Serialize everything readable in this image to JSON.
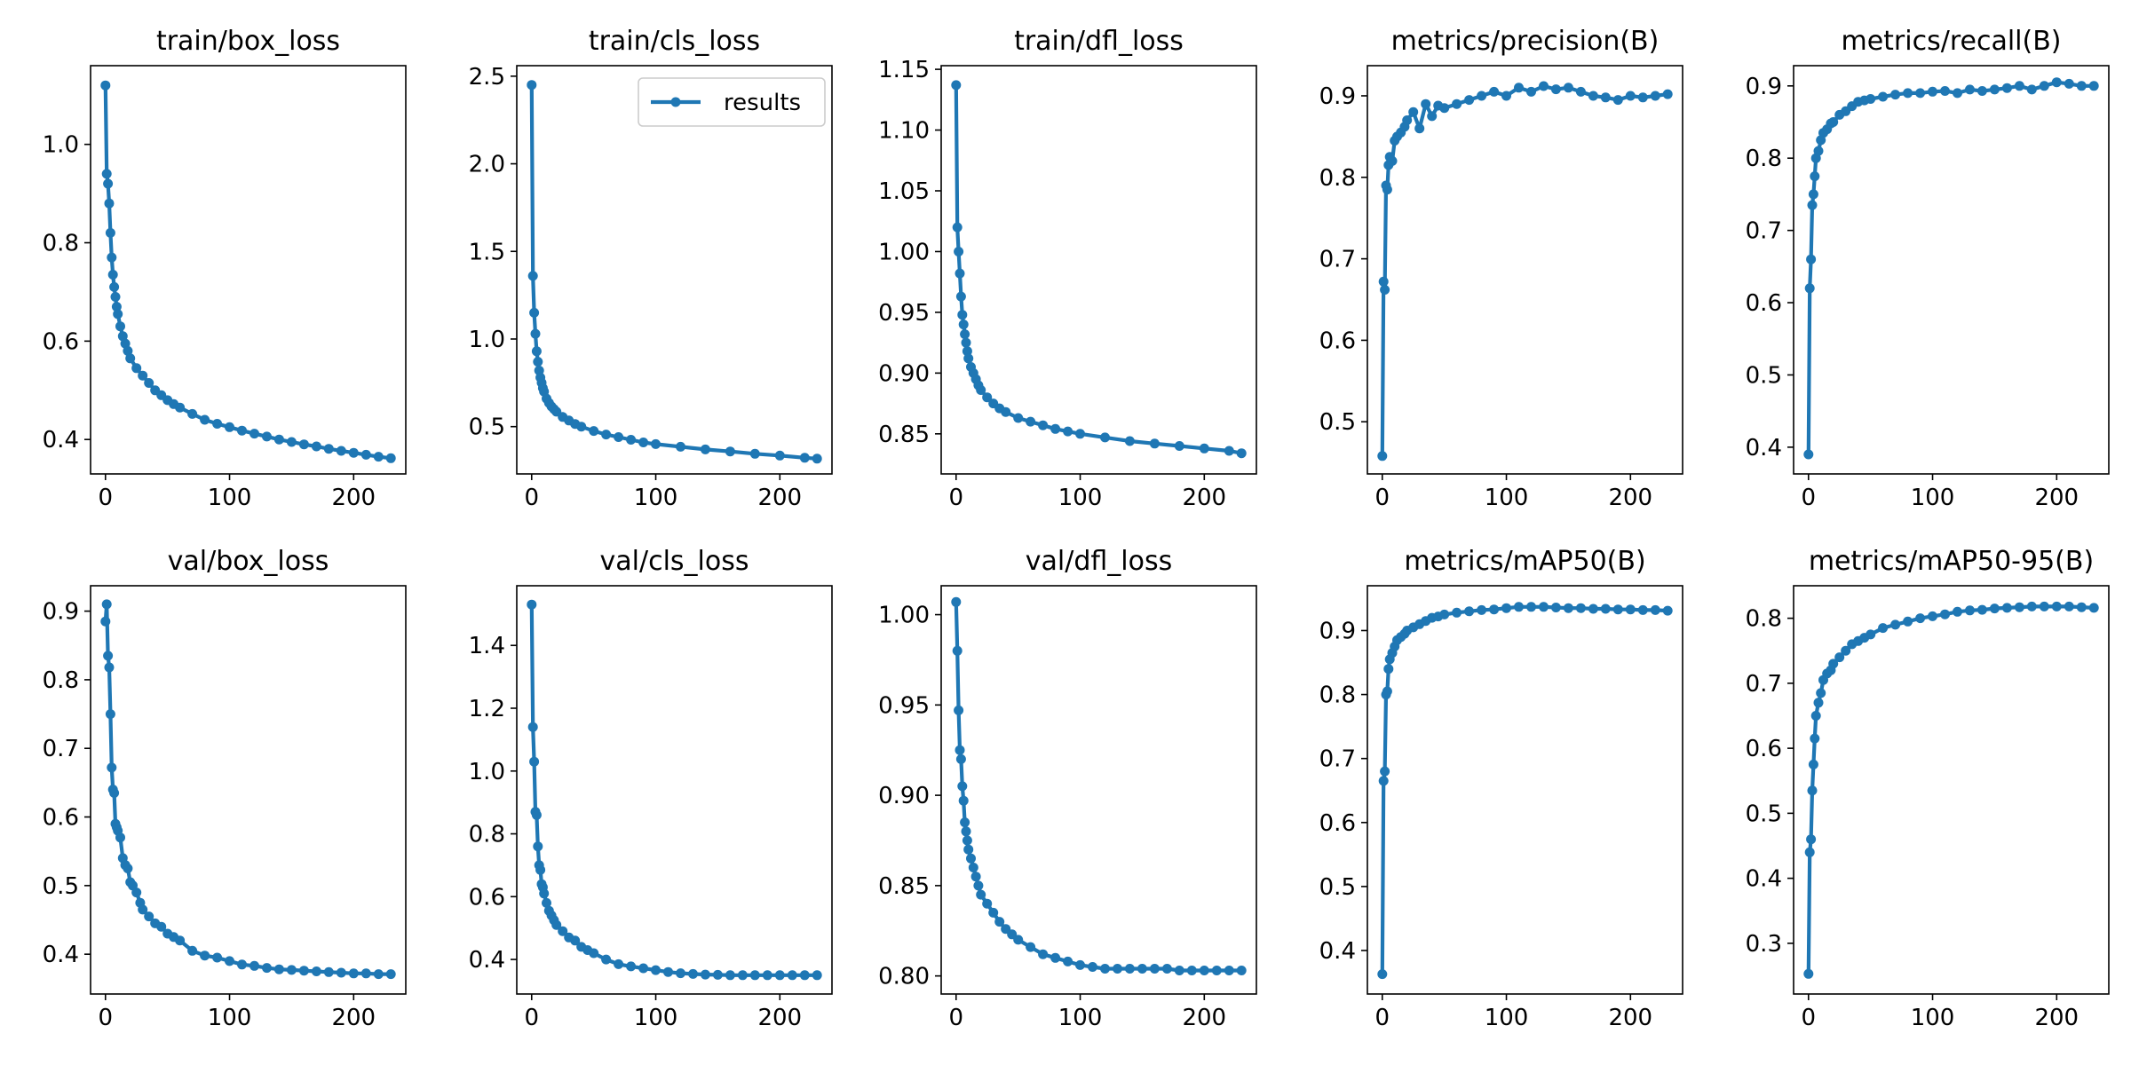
{
  "legend": {
    "label": "results"
  },
  "colors": {
    "series": "#1f77b4",
    "axes": "#000000",
    "background": "#ffffff",
    "legend_border": "#cccccc"
  },
  "chart_data": [
    {
      "type": "line",
      "title": "train/box_loss",
      "xlabel": "",
      "ylabel": "",
      "xlim": [
        -12,
        242
      ],
      "ylim": [
        0.33,
        1.16
      ],
      "xticks": [
        0,
        100,
        200
      ],
      "yticks": [
        0.4,
        0.6,
        0.8,
        1.0
      ],
      "y_decimals": 1,
      "series": [
        {
          "name": "results",
          "x": [
            0,
            1,
            2,
            3,
            4,
            5,
            6,
            7,
            8,
            9,
            10,
            12,
            14,
            16,
            18,
            20,
            25,
            30,
            35,
            40,
            45,
            50,
            55,
            60,
            70,
            80,
            90,
            100,
            110,
            120,
            130,
            140,
            150,
            160,
            170,
            180,
            190,
            200,
            210,
            220,
            230
          ],
          "y": [
            1.12,
            0.94,
            0.92,
            0.88,
            0.82,
            0.77,
            0.735,
            0.71,
            0.69,
            0.67,
            0.655,
            0.63,
            0.61,
            0.595,
            0.58,
            0.565,
            0.545,
            0.53,
            0.515,
            0.5,
            0.49,
            0.48,
            0.472,
            0.465,
            0.452,
            0.44,
            0.432,
            0.425,
            0.418,
            0.412,
            0.406,
            0.4,
            0.395,
            0.39,
            0.386,
            0.381,
            0.377,
            0.373,
            0.369,
            0.365,
            0.362
          ]
        }
      ]
    },
    {
      "type": "line",
      "title": "train/cls_loss",
      "xlabel": "",
      "ylabel": "",
      "xlim": [
        -12,
        242
      ],
      "ylim": [
        0.23,
        2.56
      ],
      "xticks": [
        0,
        100,
        200
      ],
      "yticks": [
        0.5,
        1.0,
        1.5,
        2.0,
        2.5
      ],
      "y_decimals": 1,
      "legend": "top-right",
      "series": [
        {
          "name": "results",
          "x": [
            0,
            1,
            2,
            3,
            4,
            5,
            6,
            7,
            8,
            9,
            10,
            12,
            14,
            16,
            18,
            20,
            25,
            30,
            35,
            40,
            50,
            60,
            70,
            80,
            90,
            100,
            120,
            140,
            160,
            180,
            200,
            220,
            230
          ],
          "y": [
            2.45,
            1.36,
            1.15,
            1.03,
            0.93,
            0.87,
            0.82,
            0.78,
            0.75,
            0.72,
            0.7,
            0.66,
            0.635,
            0.615,
            0.6,
            0.585,
            0.555,
            0.535,
            0.515,
            0.5,
            0.475,
            0.455,
            0.44,
            0.425,
            0.41,
            0.4,
            0.385,
            0.37,
            0.358,
            0.345,
            0.335,
            0.322,
            0.317
          ]
        }
      ]
    },
    {
      "type": "line",
      "title": "train/dfl_loss",
      "xlabel": "",
      "ylabel": "",
      "xlim": [
        -12,
        242
      ],
      "ylim": [
        0.817,
        1.153
      ],
      "xticks": [
        0,
        100,
        200
      ],
      "yticks": [
        0.85,
        0.9,
        0.95,
        1.0,
        1.05,
        1.1,
        1.15
      ],
      "y_decimals": 2,
      "series": [
        {
          "name": "results",
          "x": [
            0,
            1,
            2,
            3,
            4,
            5,
            6,
            7,
            8,
            9,
            10,
            12,
            14,
            16,
            18,
            20,
            25,
            30,
            35,
            40,
            50,
            60,
            70,
            80,
            90,
            100,
            120,
            140,
            160,
            180,
            200,
            220,
            230
          ],
          "y": [
            1.137,
            1.02,
            1.0,
            0.982,
            0.963,
            0.948,
            0.94,
            0.932,
            0.925,
            0.918,
            0.912,
            0.905,
            0.9,
            0.895,
            0.89,
            0.886,
            0.88,
            0.875,
            0.871,
            0.868,
            0.863,
            0.86,
            0.857,
            0.854,
            0.852,
            0.85,
            0.847,
            0.844,
            0.842,
            0.84,
            0.838,
            0.836,
            0.834
          ]
        }
      ]
    },
    {
      "type": "line",
      "title": "metrics/precision(B)",
      "xlabel": "",
      "ylabel": "",
      "xlim": [
        -12,
        242
      ],
      "ylim": [
        0.436,
        0.937
      ],
      "xticks": [
        0,
        100,
        200
      ],
      "yticks": [
        0.5,
        0.6,
        0.7,
        0.8,
        0.9
      ],
      "y_decimals": 1,
      "series": [
        {
          "name": "results",
          "x": [
            0,
            1,
            2,
            3,
            4,
            5,
            6,
            8,
            10,
            12,
            15,
            18,
            20,
            25,
            30,
            35,
            40,
            45,
            50,
            60,
            70,
            80,
            90,
            100,
            110,
            120,
            130,
            140,
            150,
            160,
            170,
            180,
            190,
            200,
            210,
            220,
            230
          ],
          "y": [
            0.458,
            0.672,
            0.662,
            0.79,
            0.785,
            0.815,
            0.825,
            0.82,
            0.845,
            0.85,
            0.855,
            0.862,
            0.87,
            0.88,
            0.86,
            0.89,
            0.875,
            0.888,
            0.885,
            0.89,
            0.895,
            0.9,
            0.905,
            0.9,
            0.91,
            0.905,
            0.912,
            0.908,
            0.91,
            0.905,
            0.9,
            0.898,
            0.895,
            0.9,
            0.898,
            0.9,
            0.902
          ]
        }
      ]
    },
    {
      "type": "line",
      "title": "metrics/recall(B)",
      "xlabel": "",
      "ylabel": "",
      "xlim": [
        -12,
        242
      ],
      "ylim": [
        0.363,
        0.928
      ],
      "xticks": [
        0,
        100,
        200
      ],
      "yticks": [
        0.4,
        0.5,
        0.6,
        0.7,
        0.8,
        0.9
      ],
      "y_decimals": 1,
      "series": [
        {
          "name": "results",
          "x": [
            0,
            1,
            2,
            3,
            4,
            5,
            6,
            8,
            10,
            12,
            15,
            18,
            20,
            25,
            30,
            35,
            40,
            45,
            50,
            60,
            70,
            80,
            90,
            100,
            110,
            120,
            130,
            140,
            150,
            160,
            170,
            180,
            190,
            200,
            210,
            220,
            230
          ],
          "y": [
            0.39,
            0.62,
            0.66,
            0.735,
            0.75,
            0.775,
            0.8,
            0.81,
            0.825,
            0.835,
            0.84,
            0.848,
            0.85,
            0.86,
            0.865,
            0.872,
            0.878,
            0.88,
            0.882,
            0.885,
            0.888,
            0.89,
            0.89,
            0.892,
            0.893,
            0.89,
            0.895,
            0.893,
            0.895,
            0.897,
            0.9,
            0.895,
            0.9,
            0.905,
            0.903,
            0.9,
            0.9
          ]
        }
      ]
    },
    {
      "type": "line",
      "title": "val/box_loss",
      "xlabel": "",
      "ylabel": "",
      "xlim": [
        -12,
        242
      ],
      "ylim": [
        0.342,
        0.937
      ],
      "xticks": [
        0,
        100,
        200
      ],
      "yticks": [
        0.4,
        0.5,
        0.6,
        0.7,
        0.8,
        0.9
      ],
      "y_decimals": 1,
      "series": [
        {
          "name": "results",
          "x": [
            0,
            1,
            2,
            3,
            4,
            5,
            6,
            7,
            8,
            9,
            10,
            12,
            14,
            16,
            18,
            20,
            22,
            25,
            28,
            30,
            35,
            40,
            45,
            50,
            55,
            60,
            70,
            80,
            90,
            100,
            110,
            120,
            130,
            140,
            150,
            160,
            170,
            180,
            190,
            200,
            210,
            220,
            230
          ],
          "y": [
            0.885,
            0.91,
            0.835,
            0.818,
            0.75,
            0.672,
            0.64,
            0.635,
            0.59,
            0.585,
            0.58,
            0.57,
            0.54,
            0.53,
            0.525,
            0.505,
            0.5,
            0.49,
            0.475,
            0.465,
            0.455,
            0.445,
            0.44,
            0.43,
            0.425,
            0.42,
            0.405,
            0.398,
            0.395,
            0.39,
            0.385,
            0.383,
            0.38,
            0.378,
            0.377,
            0.376,
            0.375,
            0.374,
            0.373,
            0.372,
            0.372,
            0.371,
            0.371
          ]
        }
      ]
    },
    {
      "type": "line",
      "title": "val/cls_loss",
      "xlabel": "",
      "ylabel": "",
      "xlim": [
        -12,
        242
      ],
      "ylim": [
        0.29,
        1.59
      ],
      "xticks": [
        0,
        100,
        200
      ],
      "yticks": [
        0.4,
        0.6,
        0.8,
        1.0,
        1.2,
        1.4
      ],
      "y_decimals": 1,
      "series": [
        {
          "name": "results",
          "x": [
            0,
            1,
            2,
            3,
            4,
            5,
            6,
            7,
            8,
            9,
            10,
            12,
            14,
            16,
            18,
            20,
            25,
            30,
            35,
            40,
            45,
            50,
            60,
            70,
            80,
            90,
            100,
            110,
            120,
            130,
            140,
            150,
            160,
            170,
            180,
            190,
            200,
            210,
            220,
            230
          ],
          "y": [
            1.53,
            1.14,
            1.03,
            0.87,
            0.86,
            0.76,
            0.7,
            0.685,
            0.64,
            0.63,
            0.61,
            0.58,
            0.555,
            0.54,
            0.525,
            0.51,
            0.49,
            0.47,
            0.46,
            0.44,
            0.43,
            0.42,
            0.4,
            0.385,
            0.378,
            0.372,
            0.366,
            0.36,
            0.356,
            0.354,
            0.352,
            0.351,
            0.35,
            0.35,
            0.35,
            0.35,
            0.35,
            0.35,
            0.35,
            0.35
          ]
        }
      ]
    },
    {
      "type": "line",
      "title": "val/dfl_loss",
      "xlabel": "",
      "ylabel": "",
      "xlim": [
        -12,
        242
      ],
      "ylim": [
        0.79,
        1.016
      ],
      "xticks": [
        0,
        100,
        200
      ],
      "yticks": [
        0.8,
        0.85,
        0.9,
        0.95,
        1.0
      ],
      "y_decimals": 2,
      "series": [
        {
          "name": "results",
          "x": [
            0,
            1,
            2,
            3,
            4,
            5,
            6,
            7,
            8,
            9,
            10,
            12,
            14,
            16,
            18,
            20,
            25,
            30,
            35,
            40,
            45,
            50,
            60,
            70,
            80,
            90,
            100,
            110,
            120,
            130,
            140,
            150,
            160,
            170,
            180,
            190,
            200,
            210,
            220,
            230
          ],
          "y": [
            1.007,
            0.98,
            0.947,
            0.925,
            0.92,
            0.905,
            0.897,
            0.885,
            0.88,
            0.875,
            0.87,
            0.865,
            0.86,
            0.855,
            0.85,
            0.845,
            0.84,
            0.835,
            0.83,
            0.826,
            0.823,
            0.82,
            0.816,
            0.812,
            0.81,
            0.808,
            0.806,
            0.805,
            0.804,
            0.804,
            0.804,
            0.804,
            0.804,
            0.804,
            0.803,
            0.803,
            0.803,
            0.803,
            0.803,
            0.803
          ]
        }
      ]
    },
    {
      "type": "line",
      "title": "metrics/mAP50(B)",
      "xlabel": "",
      "ylabel": "",
      "xlim": [
        -12,
        242
      ],
      "ylim": [
        0.332,
        0.97
      ],
      "xticks": [
        0,
        100,
        200
      ],
      "yticks": [
        0.4,
        0.5,
        0.6,
        0.7,
        0.8,
        0.9
      ],
      "y_decimals": 1,
      "series": [
        {
          "name": "results",
          "x": [
            0,
            1,
            2,
            3,
            4,
            5,
            6,
            8,
            10,
            12,
            15,
            18,
            20,
            25,
            30,
            35,
            40,
            45,
            50,
            60,
            70,
            80,
            90,
            100,
            110,
            120,
            130,
            140,
            150,
            160,
            170,
            180,
            190,
            200,
            210,
            220,
            230
          ],
          "y": [
            0.363,
            0.665,
            0.68,
            0.8,
            0.805,
            0.84,
            0.855,
            0.865,
            0.875,
            0.885,
            0.89,
            0.895,
            0.9,
            0.905,
            0.91,
            0.915,
            0.92,
            0.922,
            0.925,
            0.928,
            0.93,
            0.932,
            0.933,
            0.935,
            0.937,
            0.937,
            0.937,
            0.936,
            0.935,
            0.935,
            0.934,
            0.934,
            0.933,
            0.933,
            0.932,
            0.932,
            0.931
          ]
        }
      ]
    },
    {
      "type": "line",
      "title": "metrics/mAP50-95(B)",
      "xlabel": "",
      "ylabel": "",
      "xlim": [
        -12,
        242
      ],
      "ylim": [
        0.222,
        0.85
      ],
      "xticks": [
        0,
        100,
        200
      ],
      "yticks": [
        0.3,
        0.4,
        0.5,
        0.6,
        0.7,
        0.8
      ],
      "y_decimals": 1,
      "series": [
        {
          "name": "results",
          "x": [
            0,
            1,
            2,
            3,
            4,
            5,
            6,
            8,
            10,
            12,
            15,
            18,
            20,
            25,
            30,
            35,
            40,
            45,
            50,
            60,
            70,
            80,
            90,
            100,
            110,
            120,
            130,
            140,
            150,
            160,
            170,
            180,
            190,
            200,
            210,
            220,
            230
          ],
          "y": [
            0.253,
            0.44,
            0.46,
            0.535,
            0.575,
            0.615,
            0.65,
            0.67,
            0.685,
            0.705,
            0.715,
            0.72,
            0.73,
            0.74,
            0.75,
            0.76,
            0.765,
            0.77,
            0.775,
            0.785,
            0.79,
            0.795,
            0.8,
            0.803,
            0.806,
            0.81,
            0.812,
            0.813,
            0.815,
            0.816,
            0.817,
            0.818,
            0.818,
            0.818,
            0.818,
            0.817,
            0.816
          ]
        }
      ]
    }
  ]
}
